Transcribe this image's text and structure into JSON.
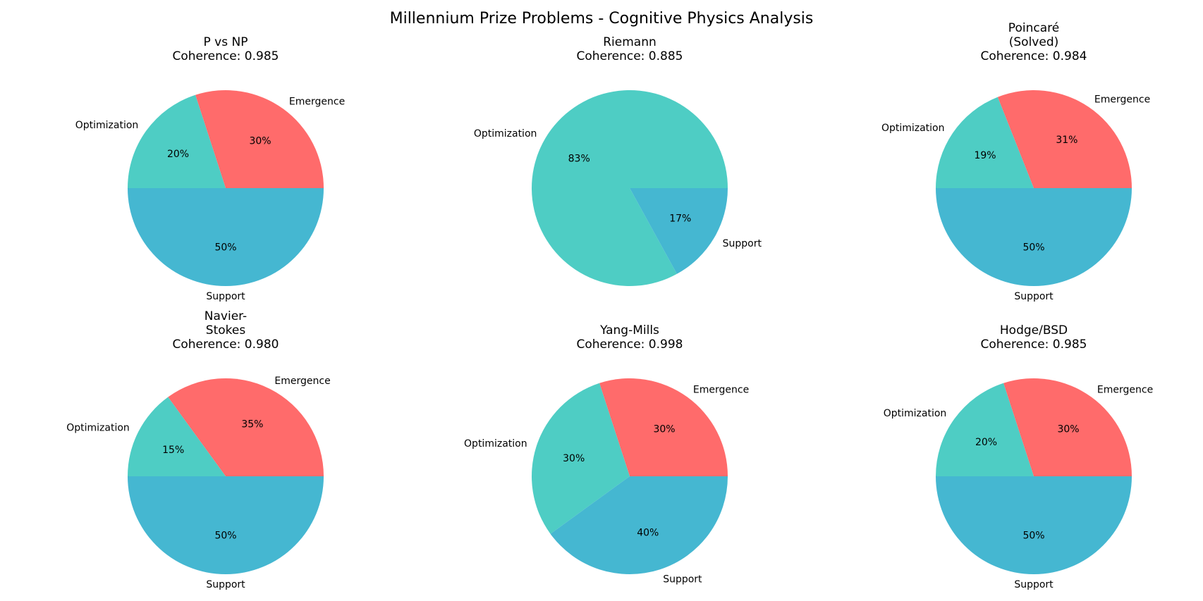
{
  "figure": {
    "title": "Millennium Prize Problems - Cognitive Physics Analysis"
  },
  "chart_data": [
    {
      "type": "pie",
      "title_lines": [
        "P vs NP",
        "Coherence: 0.985"
      ],
      "slices": [
        {
          "label": "Emergence",
          "value": 30,
          "pct_text": "30%",
          "color": "#ff6b6b"
        },
        {
          "label": "Optimization",
          "value": 20,
          "pct_text": "20%",
          "color": "#4ecdc4"
        },
        {
          "label": "Support",
          "value": 50,
          "pct_text": "50%",
          "color": "#45b7d1"
        }
      ]
    },
    {
      "type": "pie",
      "title_lines": [
        "Riemann",
        "Coherence: 0.885"
      ],
      "slices": [
        {
          "label": "Optimization",
          "value": 83,
          "pct_text": "83%",
          "color": "#4ecdc4"
        },
        {
          "label": "Support",
          "value": 17,
          "pct_text": "17%",
          "color": "#45b7d1"
        }
      ]
    },
    {
      "type": "pie",
      "title_lines": [
        "Poincaré",
        "(Solved)",
        "Coherence: 0.984"
      ],
      "slices": [
        {
          "label": "Emergence",
          "value": 31,
          "pct_text": "31%",
          "color": "#ff6b6b"
        },
        {
          "label": "Optimization",
          "value": 19,
          "pct_text": "19%",
          "color": "#4ecdc4"
        },
        {
          "label": "Support",
          "value": 50,
          "pct_text": "50%",
          "color": "#45b7d1"
        }
      ]
    },
    {
      "type": "pie",
      "title_lines": [
        "Navier-",
        "Stokes",
        "Coherence: 0.980"
      ],
      "slices": [
        {
          "label": "Emergence",
          "value": 35,
          "pct_text": "35%",
          "color": "#ff6b6b"
        },
        {
          "label": "Optimization",
          "value": 15,
          "pct_text": "15%",
          "color": "#4ecdc4"
        },
        {
          "label": "Support",
          "value": 50,
          "pct_text": "50%",
          "color": "#45b7d1"
        }
      ]
    },
    {
      "type": "pie",
      "title_lines": [
        "Yang-Mills",
        "Coherence: 0.998"
      ],
      "slices": [
        {
          "label": "Emergence",
          "value": 30,
          "pct_text": "30%",
          "color": "#ff6b6b"
        },
        {
          "label": "Optimization",
          "value": 30,
          "pct_text": "30%",
          "color": "#4ecdc4"
        },
        {
          "label": "Support",
          "value": 40,
          "pct_text": "40%",
          "color": "#45b7d1"
        }
      ]
    },
    {
      "type": "pie",
      "title_lines": [
        "Hodge/BSD",
        "Coherence: 0.985"
      ],
      "slices": [
        {
          "label": "Emergence",
          "value": 30,
          "pct_text": "30%",
          "color": "#ff6b6b"
        },
        {
          "label": "Optimization",
          "value": 20,
          "pct_text": "20%",
          "color": "#4ecdc4"
        },
        {
          "label": "Support",
          "value": 50,
          "pct_text": "50%",
          "color": "#45b7d1"
        }
      ]
    }
  ]
}
